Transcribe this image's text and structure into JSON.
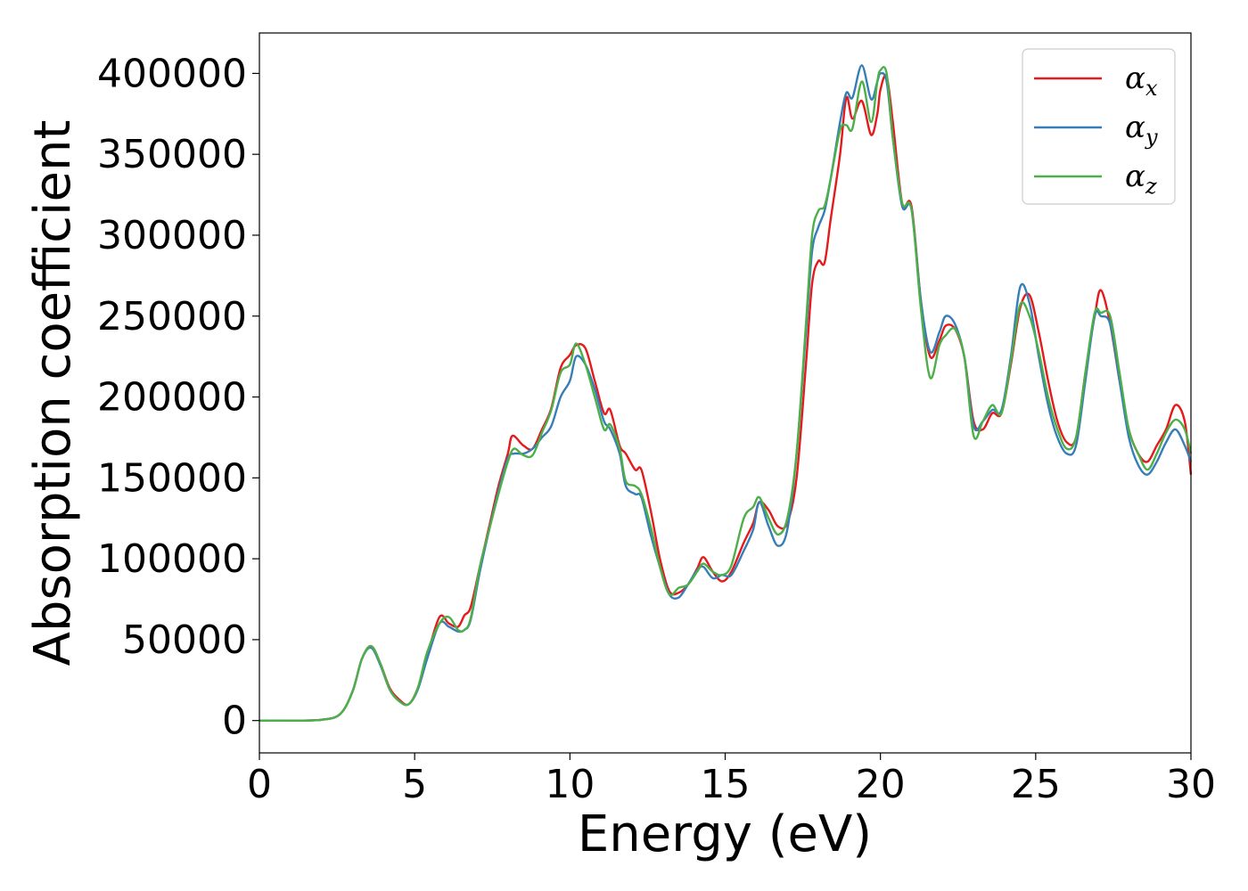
{
  "chart_data": {
    "type": "line",
    "title": "",
    "xlabel": "Energy (eV)",
    "ylabel": "Absorption coefficient",
    "xlim": [
      0,
      30
    ],
    "ylim": [
      -20000,
      425000
    ],
    "xticks": [
      0,
      5,
      10,
      15,
      20,
      25,
      30
    ],
    "yticks": [
      0,
      50000,
      100000,
      150000,
      200000,
      250000,
      300000,
      350000,
      400000
    ],
    "grid": false,
    "legend_position": "top-right",
    "series": [
      {
        "name": "α",
        "subscript": "x",
        "color": "#e41a1c",
        "points": [
          [
            0,
            0
          ],
          [
            1,
            0
          ],
          [
            2,
            500
          ],
          [
            2.6,
            4000
          ],
          [
            3,
            18000
          ],
          [
            3.3,
            38000
          ],
          [
            3.6,
            46000
          ],
          [
            3.9,
            35000
          ],
          [
            4.2,
            20000
          ],
          [
            4.5,
            13000
          ],
          [
            4.8,
            10000
          ],
          [
            5.1,
            20000
          ],
          [
            5.4,
            40000
          ],
          [
            5.8,
            64000
          ],
          [
            6.1,
            60000
          ],
          [
            6.4,
            58000
          ],
          [
            6.6,
            65000
          ],
          [
            6.8,
            70000
          ],
          [
            7.1,
            95000
          ],
          [
            7.4,
            120000
          ],
          [
            7.7,
            145000
          ],
          [
            8.0,
            165000
          ],
          [
            8.15,
            176000
          ],
          [
            8.5,
            170000
          ],
          [
            8.8,
            168000
          ],
          [
            9.1,
            180000
          ],
          [
            9.4,
            193000
          ],
          [
            9.7,
            218000
          ],
          [
            10.0,
            226000
          ],
          [
            10.2,
            232000
          ],
          [
            10.5,
            230000
          ],
          [
            10.8,
            210000
          ],
          [
            11.1,
            190000
          ],
          [
            11.3,
            192000
          ],
          [
            11.6,
            170000
          ],
          [
            11.8,
            165000
          ],
          [
            12.1,
            155000
          ],
          [
            12.3,
            155000
          ],
          [
            12.6,
            130000
          ],
          [
            12.9,
            100000
          ],
          [
            13.2,
            80000
          ],
          [
            13.5,
            79000
          ],
          [
            13.8,
            84000
          ],
          [
            14.1,
            94000
          ],
          [
            14.3,
            101000
          ],
          [
            14.6,
            92000
          ],
          [
            14.9,
            86000
          ],
          [
            15.2,
            92000
          ],
          [
            15.6,
            110000
          ],
          [
            15.9,
            122000
          ],
          [
            16.1,
            135000
          ],
          [
            16.4,
            130000
          ],
          [
            16.7,
            120000
          ],
          [
            17.0,
            122000
          ],
          [
            17.3,
            150000
          ],
          [
            17.6,
            220000
          ],
          [
            17.8,
            270000
          ],
          [
            18.0,
            284000
          ],
          [
            18.2,
            283000
          ],
          [
            18.4,
            310000
          ],
          [
            18.7,
            350000
          ],
          [
            18.9,
            385000
          ],
          [
            19.1,
            372000
          ],
          [
            19.4,
            383000
          ],
          [
            19.7,
            362000
          ],
          [
            19.9,
            375000
          ],
          [
            20.0,
            390000
          ],
          [
            20.2,
            398000
          ],
          [
            20.4,
            370000
          ],
          [
            20.7,
            320000
          ],
          [
            21.0,
            318000
          ],
          [
            21.3,
            260000
          ],
          [
            21.6,
            225000
          ],
          [
            21.9,
            235000
          ],
          [
            22.1,
            244000
          ],
          [
            22.4,
            242000
          ],
          [
            22.7,
            225000
          ],
          [
            23.0,
            185000
          ],
          [
            23.3,
            180000
          ],
          [
            23.6,
            190000
          ],
          [
            23.9,
            190000
          ],
          [
            24.2,
            220000
          ],
          [
            24.5,
            255000
          ],
          [
            24.8,
            263000
          ],
          [
            25.1,
            240000
          ],
          [
            25.4,
            210000
          ],
          [
            25.7,
            185000
          ],
          [
            26.0,
            172000
          ],
          [
            26.3,
            175000
          ],
          [
            26.6,
            215000
          ],
          [
            26.9,
            250000
          ],
          [
            27.1,
            266000
          ],
          [
            27.4,
            245000
          ],
          [
            27.7,
            210000
          ],
          [
            28.0,
            180000
          ],
          [
            28.3,
            165000
          ],
          [
            28.6,
            160000
          ],
          [
            28.9,
            170000
          ],
          [
            29.2,
            180000
          ],
          [
            29.5,
            195000
          ],
          [
            29.8,
            185000
          ],
          [
            30.0,
            152000
          ]
        ]
      },
      {
        "name": "α",
        "subscript": "y",
        "color": "#377eb8",
        "points": [
          [
            0,
            0
          ],
          [
            1,
            0
          ],
          [
            2,
            500
          ],
          [
            2.6,
            4000
          ],
          [
            3,
            18000
          ],
          [
            3.3,
            38000
          ],
          [
            3.6,
            45000
          ],
          [
            3.9,
            34000
          ],
          [
            4.2,
            19000
          ],
          [
            4.5,
            12000
          ],
          [
            4.8,
            10000
          ],
          [
            5.1,
            19000
          ],
          [
            5.4,
            38000
          ],
          [
            5.8,
            60000
          ],
          [
            6.1,
            58000
          ],
          [
            6.4,
            55000
          ],
          [
            6.6,
            56000
          ],
          [
            6.8,
            62000
          ],
          [
            7.1,
            92000
          ],
          [
            7.4,
            118000
          ],
          [
            7.7,
            142000
          ],
          [
            8.0,
            162000
          ],
          [
            8.2,
            165000
          ],
          [
            8.5,
            165000
          ],
          [
            8.8,
            168000
          ],
          [
            9.1,
            175000
          ],
          [
            9.4,
            182000
          ],
          [
            9.7,
            200000
          ],
          [
            10.0,
            210000
          ],
          [
            10.2,
            225000
          ],
          [
            10.5,
            220000
          ],
          [
            10.8,
            205000
          ],
          [
            11.1,
            185000
          ],
          [
            11.3,
            180000
          ],
          [
            11.6,
            165000
          ],
          [
            11.8,
            145000
          ],
          [
            12.1,
            140000
          ],
          [
            12.3,
            138000
          ],
          [
            12.6,
            115000
          ],
          [
            12.9,
            95000
          ],
          [
            13.2,
            78000
          ],
          [
            13.5,
            76000
          ],
          [
            13.8,
            84000
          ],
          [
            14.1,
            93000
          ],
          [
            14.3,
            95000
          ],
          [
            14.6,
            88000
          ],
          [
            14.9,
            90000
          ],
          [
            15.2,
            90000
          ],
          [
            15.6,
            105000
          ],
          [
            15.9,
            118000
          ],
          [
            16.1,
            135000
          ],
          [
            16.4,
            120000
          ],
          [
            16.7,
            108000
          ],
          [
            17.0,
            118000
          ],
          [
            17.3,
            165000
          ],
          [
            17.6,
            240000
          ],
          [
            17.8,
            290000
          ],
          [
            18.0,
            305000
          ],
          [
            18.2,
            315000
          ],
          [
            18.4,
            335000
          ],
          [
            18.7,
            370000
          ],
          [
            18.9,
            388000
          ],
          [
            19.1,
            385000
          ],
          [
            19.4,
            405000
          ],
          [
            19.7,
            384000
          ],
          [
            19.9,
            395000
          ],
          [
            20.0,
            400000
          ],
          [
            20.2,
            395000
          ],
          [
            20.4,
            360000
          ],
          [
            20.7,
            318000
          ],
          [
            21.0,
            316000
          ],
          [
            21.3,
            260000
          ],
          [
            21.6,
            228000
          ],
          [
            21.9,
            240000
          ],
          [
            22.1,
            250000
          ],
          [
            22.4,
            245000
          ],
          [
            22.7,
            225000
          ],
          [
            23.0,
            182000
          ],
          [
            23.3,
            185000
          ],
          [
            23.6,
            192000
          ],
          [
            23.9,
            192000
          ],
          [
            24.2,
            225000
          ],
          [
            24.5,
            268000
          ],
          [
            24.8,
            258000
          ],
          [
            25.1,
            225000
          ],
          [
            25.4,
            195000
          ],
          [
            25.7,
            175000
          ],
          [
            26.0,
            165000
          ],
          [
            26.3,
            170000
          ],
          [
            26.6,
            210000
          ],
          [
            26.9,
            250000
          ],
          [
            27.1,
            250000
          ],
          [
            27.4,
            245000
          ],
          [
            27.7,
            210000
          ],
          [
            28.0,
            175000
          ],
          [
            28.3,
            158000
          ],
          [
            28.6,
            152000
          ],
          [
            28.9,
            160000
          ],
          [
            29.2,
            172000
          ],
          [
            29.5,
            180000
          ],
          [
            29.8,
            170000
          ],
          [
            30.0,
            160000
          ]
        ]
      },
      {
        "name": "α",
        "subscript": "z",
        "color": "#4daf4a",
        "points": [
          [
            0,
            0
          ],
          [
            1,
            0
          ],
          [
            2,
            500
          ],
          [
            2.6,
            4000
          ],
          [
            3,
            18000
          ],
          [
            3.3,
            38000
          ],
          [
            3.6,
            46000
          ],
          [
            3.9,
            35000
          ],
          [
            4.2,
            19000
          ],
          [
            4.5,
            12000
          ],
          [
            4.8,
            10000
          ],
          [
            5.1,
            20000
          ],
          [
            5.4,
            42000
          ],
          [
            5.8,
            60000
          ],
          [
            6.1,
            64000
          ],
          [
            6.4,
            56000
          ],
          [
            6.6,
            56000
          ],
          [
            6.8,
            63000
          ],
          [
            7.1,
            95000
          ],
          [
            7.4,
            118000
          ],
          [
            7.7,
            140000
          ],
          [
            8.0,
            160000
          ],
          [
            8.2,
            168000
          ],
          [
            8.5,
            164000
          ],
          [
            8.8,
            164000
          ],
          [
            9.1,
            178000
          ],
          [
            9.4,
            192000
          ],
          [
            9.7,
            215000
          ],
          [
            10.0,
            220000
          ],
          [
            10.2,
            233000
          ],
          [
            10.5,
            220000
          ],
          [
            10.8,
            200000
          ],
          [
            11.1,
            180000
          ],
          [
            11.3,
            183000
          ],
          [
            11.6,
            168000
          ],
          [
            11.8,
            148000
          ],
          [
            12.1,
            145000
          ],
          [
            12.3,
            140000
          ],
          [
            12.6,
            120000
          ],
          [
            12.9,
            95000
          ],
          [
            13.2,
            78000
          ],
          [
            13.5,
            82000
          ],
          [
            13.8,
            84000
          ],
          [
            14.1,
            92000
          ],
          [
            14.3,
            97000
          ],
          [
            14.6,
            92000
          ],
          [
            14.9,
            90000
          ],
          [
            15.2,
            96000
          ],
          [
            15.6,
            125000
          ],
          [
            15.9,
            132000
          ],
          [
            16.1,
            138000
          ],
          [
            16.4,
            125000
          ],
          [
            16.7,
            115000
          ],
          [
            17.0,
            125000
          ],
          [
            17.3,
            165000
          ],
          [
            17.6,
            245000
          ],
          [
            17.8,
            300000
          ],
          [
            18.0,
            315000
          ],
          [
            18.2,
            318000
          ],
          [
            18.4,
            335000
          ],
          [
            18.7,
            365000
          ],
          [
            18.9,
            368000
          ],
          [
            19.1,
            366000
          ],
          [
            19.4,
            395000
          ],
          [
            19.7,
            370000
          ],
          [
            19.9,
            395000
          ],
          [
            20.0,
            402000
          ],
          [
            20.2,
            400000
          ],
          [
            20.4,
            360000
          ],
          [
            20.7,
            320000
          ],
          [
            21.0,
            316000
          ],
          [
            21.3,
            255000
          ],
          [
            21.6,
            212000
          ],
          [
            21.9,
            232000
          ],
          [
            22.1,
            238000
          ],
          [
            22.4,
            242000
          ],
          [
            22.7,
            225000
          ],
          [
            23.0,
            176000
          ],
          [
            23.3,
            185000
          ],
          [
            23.6,
            195000
          ],
          [
            23.9,
            190000
          ],
          [
            24.2,
            222000
          ],
          [
            24.5,
            257000
          ],
          [
            24.8,
            250000
          ],
          [
            25.1,
            228000
          ],
          [
            25.4,
            200000
          ],
          [
            25.7,
            180000
          ],
          [
            26.0,
            168000
          ],
          [
            26.3,
            175000
          ],
          [
            26.6,
            215000
          ],
          [
            26.9,
            252000
          ],
          [
            27.1,
            252000
          ],
          [
            27.4,
            250000
          ],
          [
            27.7,
            215000
          ],
          [
            28.0,
            180000
          ],
          [
            28.3,
            165000
          ],
          [
            28.6,
            155000
          ],
          [
            28.9,
            165000
          ],
          [
            29.2,
            178000
          ],
          [
            29.5,
            186000
          ],
          [
            29.8,
            180000
          ],
          [
            30.0,
            165000
          ]
        ]
      }
    ]
  }
}
